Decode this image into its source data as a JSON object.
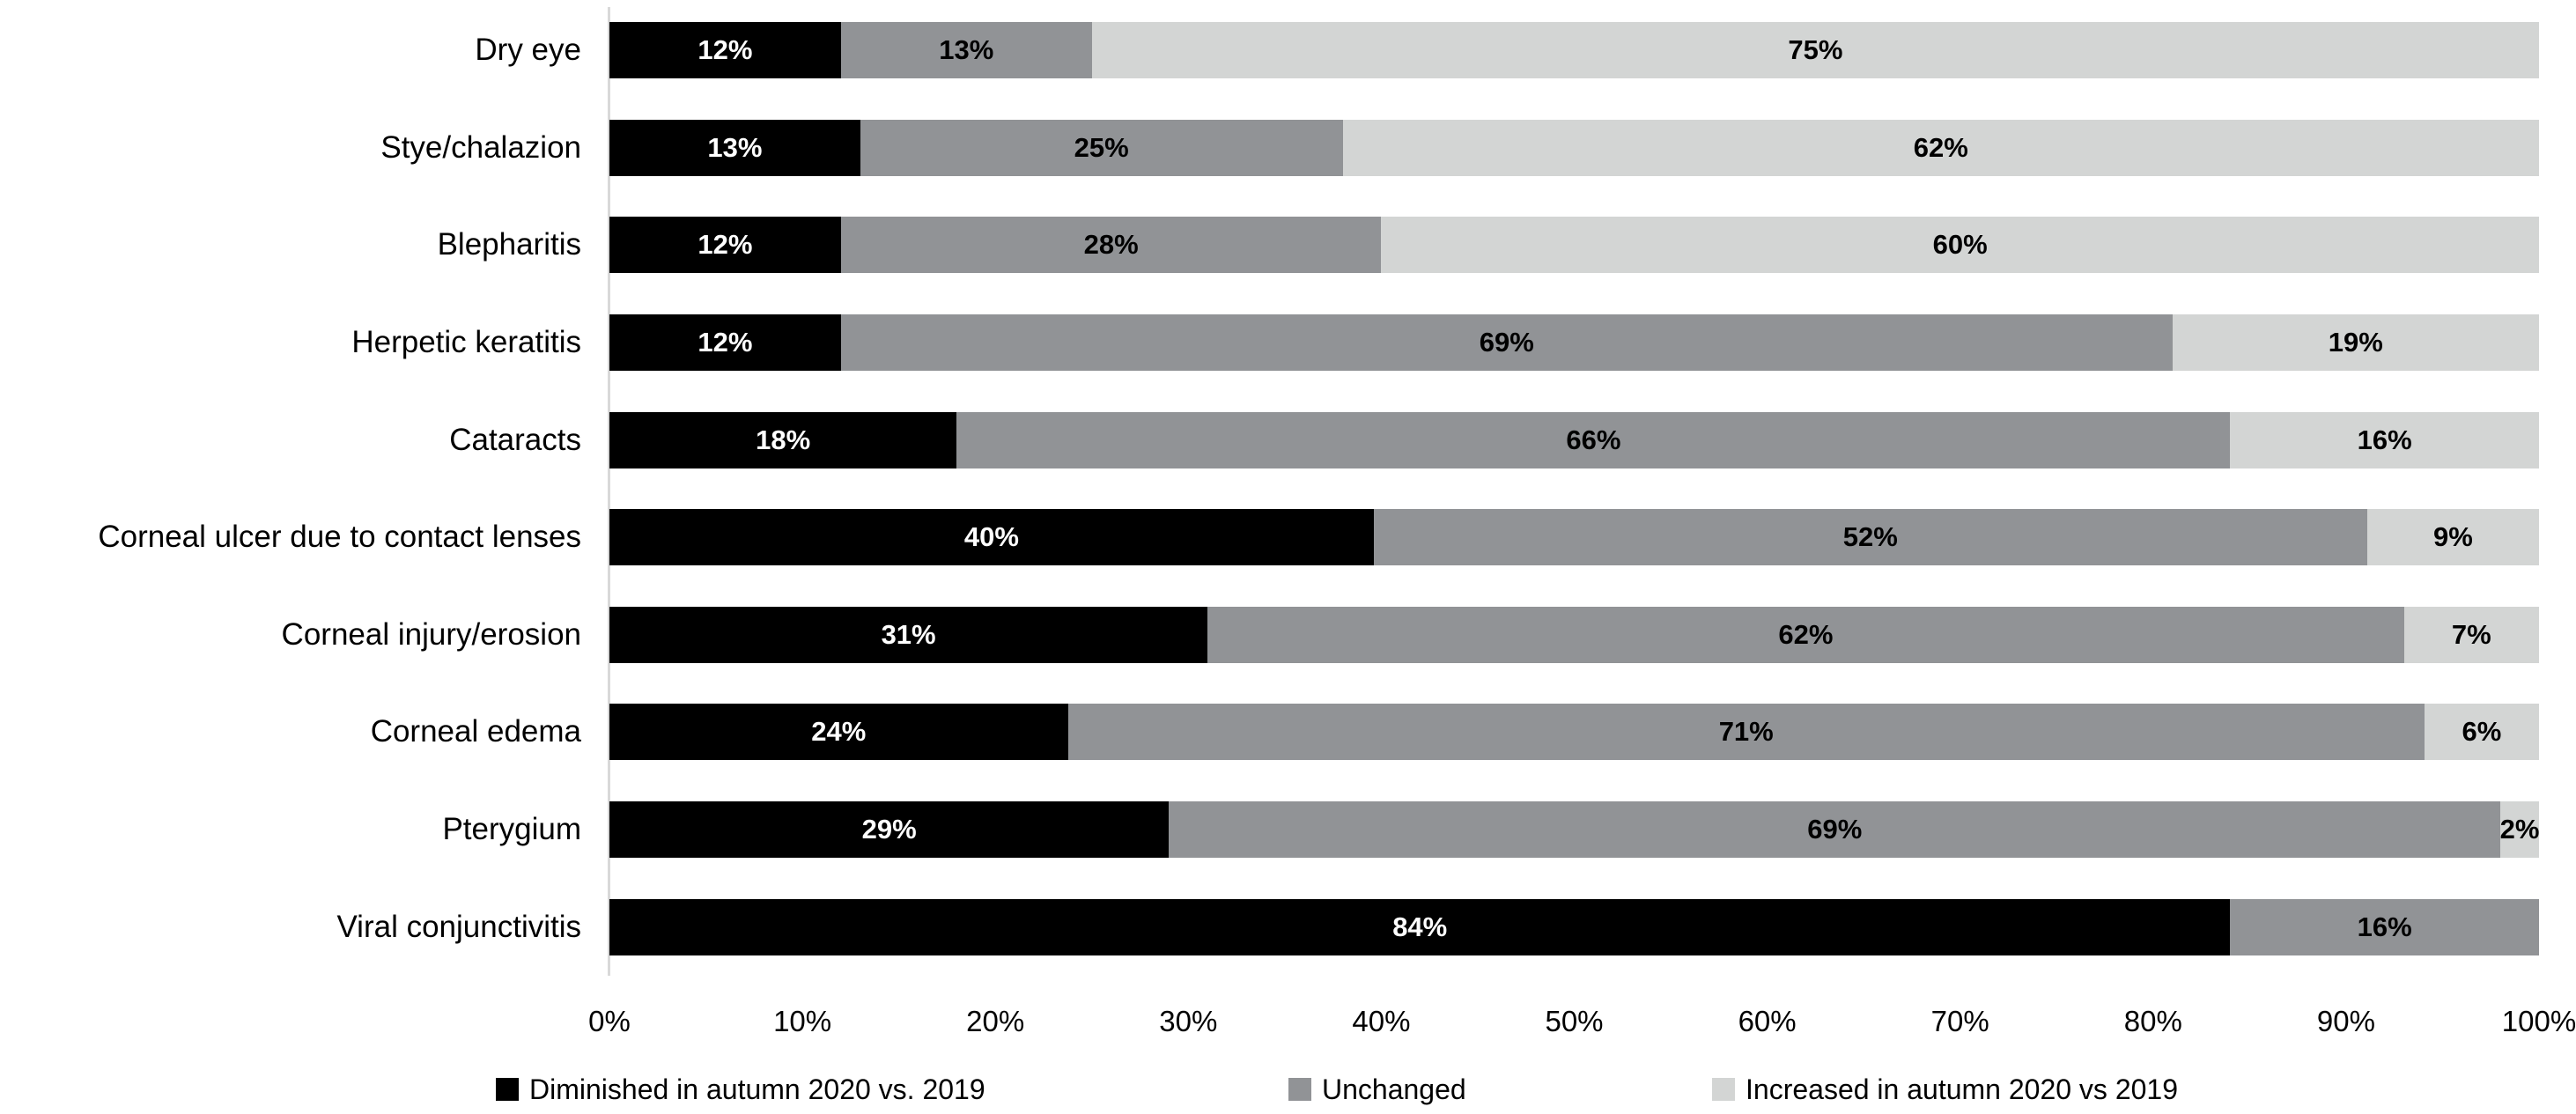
{
  "colors": {
    "diminished": "#000000",
    "unchanged": "#919396",
    "increased": "#d3d5d4",
    "axis_line": "#d9d9d9",
    "label_on_dark": "#ffffff",
    "label_on_light": "#000000",
    "background": "#ffffff"
  },
  "chart_data": {
    "type": "bar",
    "orientation": "horizontal",
    "stacked": true,
    "title": "",
    "xlabel": "",
    "ylabel": "",
    "grid": false,
    "legend_position": "bottom",
    "categories": [
      "Dry eye",
      "Stye/chalazion",
      "Blepharitis",
      "Herpetic keratitis",
      "Cataracts",
      "Corneal ulcer due to contact lenses",
      "Corneal injury/erosion",
      "Corneal edema",
      "Pterygium",
      "Viral conjunctivitis"
    ],
    "series": [
      {
        "name": "Diminished in autumn 2020 vs. 2019",
        "color_key": "diminished",
        "values": [
          12,
          13,
          12,
          12,
          18,
          40,
          31,
          24,
          29,
          84
        ],
        "labels": [
          "12%",
          "13%",
          "12%",
          "12%",
          "18%",
          "40%",
          "31%",
          "24%",
          "29%",
          "84%"
        ]
      },
      {
        "name": "Unchanged",
        "color_key": "unchanged",
        "values": [
          13,
          25,
          28,
          69,
          66,
          52,
          62,
          71,
          69,
          16
        ],
        "labels": [
          "13%",
          "25%",
          "28%",
          "69%",
          "66%",
          "52%",
          "62%",
          "71%",
          "69%",
          "16%"
        ]
      },
      {
        "name": "Increased in autumn 2020 vs 2019",
        "color_key": "increased",
        "values": [
          75,
          62,
          60,
          19,
          16,
          9,
          7,
          6,
          2,
          0
        ],
        "labels": [
          "75%",
          "62%",
          "60%",
          "19%",
          "16%",
          "9%",
          "7%",
          "6%",
          "2%",
          ""
        ]
      }
    ],
    "x_axis": {
      "range": [
        0,
        100
      ],
      "tick_labels": [
        "0%",
        "10%",
        "20%",
        "30%",
        "40%",
        "50%",
        "60%",
        "70%",
        "80%",
        "90%",
        "100%"
      ]
    },
    "legend": [
      {
        "label": "Diminished in autumn 2020 vs. 2019",
        "color_key": "diminished",
        "x": 563
      },
      {
        "label": "Unchanged",
        "color_key": "unchanged",
        "x": 1463
      },
      {
        "label": "Increased in autumn 2020 vs 2019",
        "color_key": "increased",
        "x": 1944
      }
    ]
  }
}
